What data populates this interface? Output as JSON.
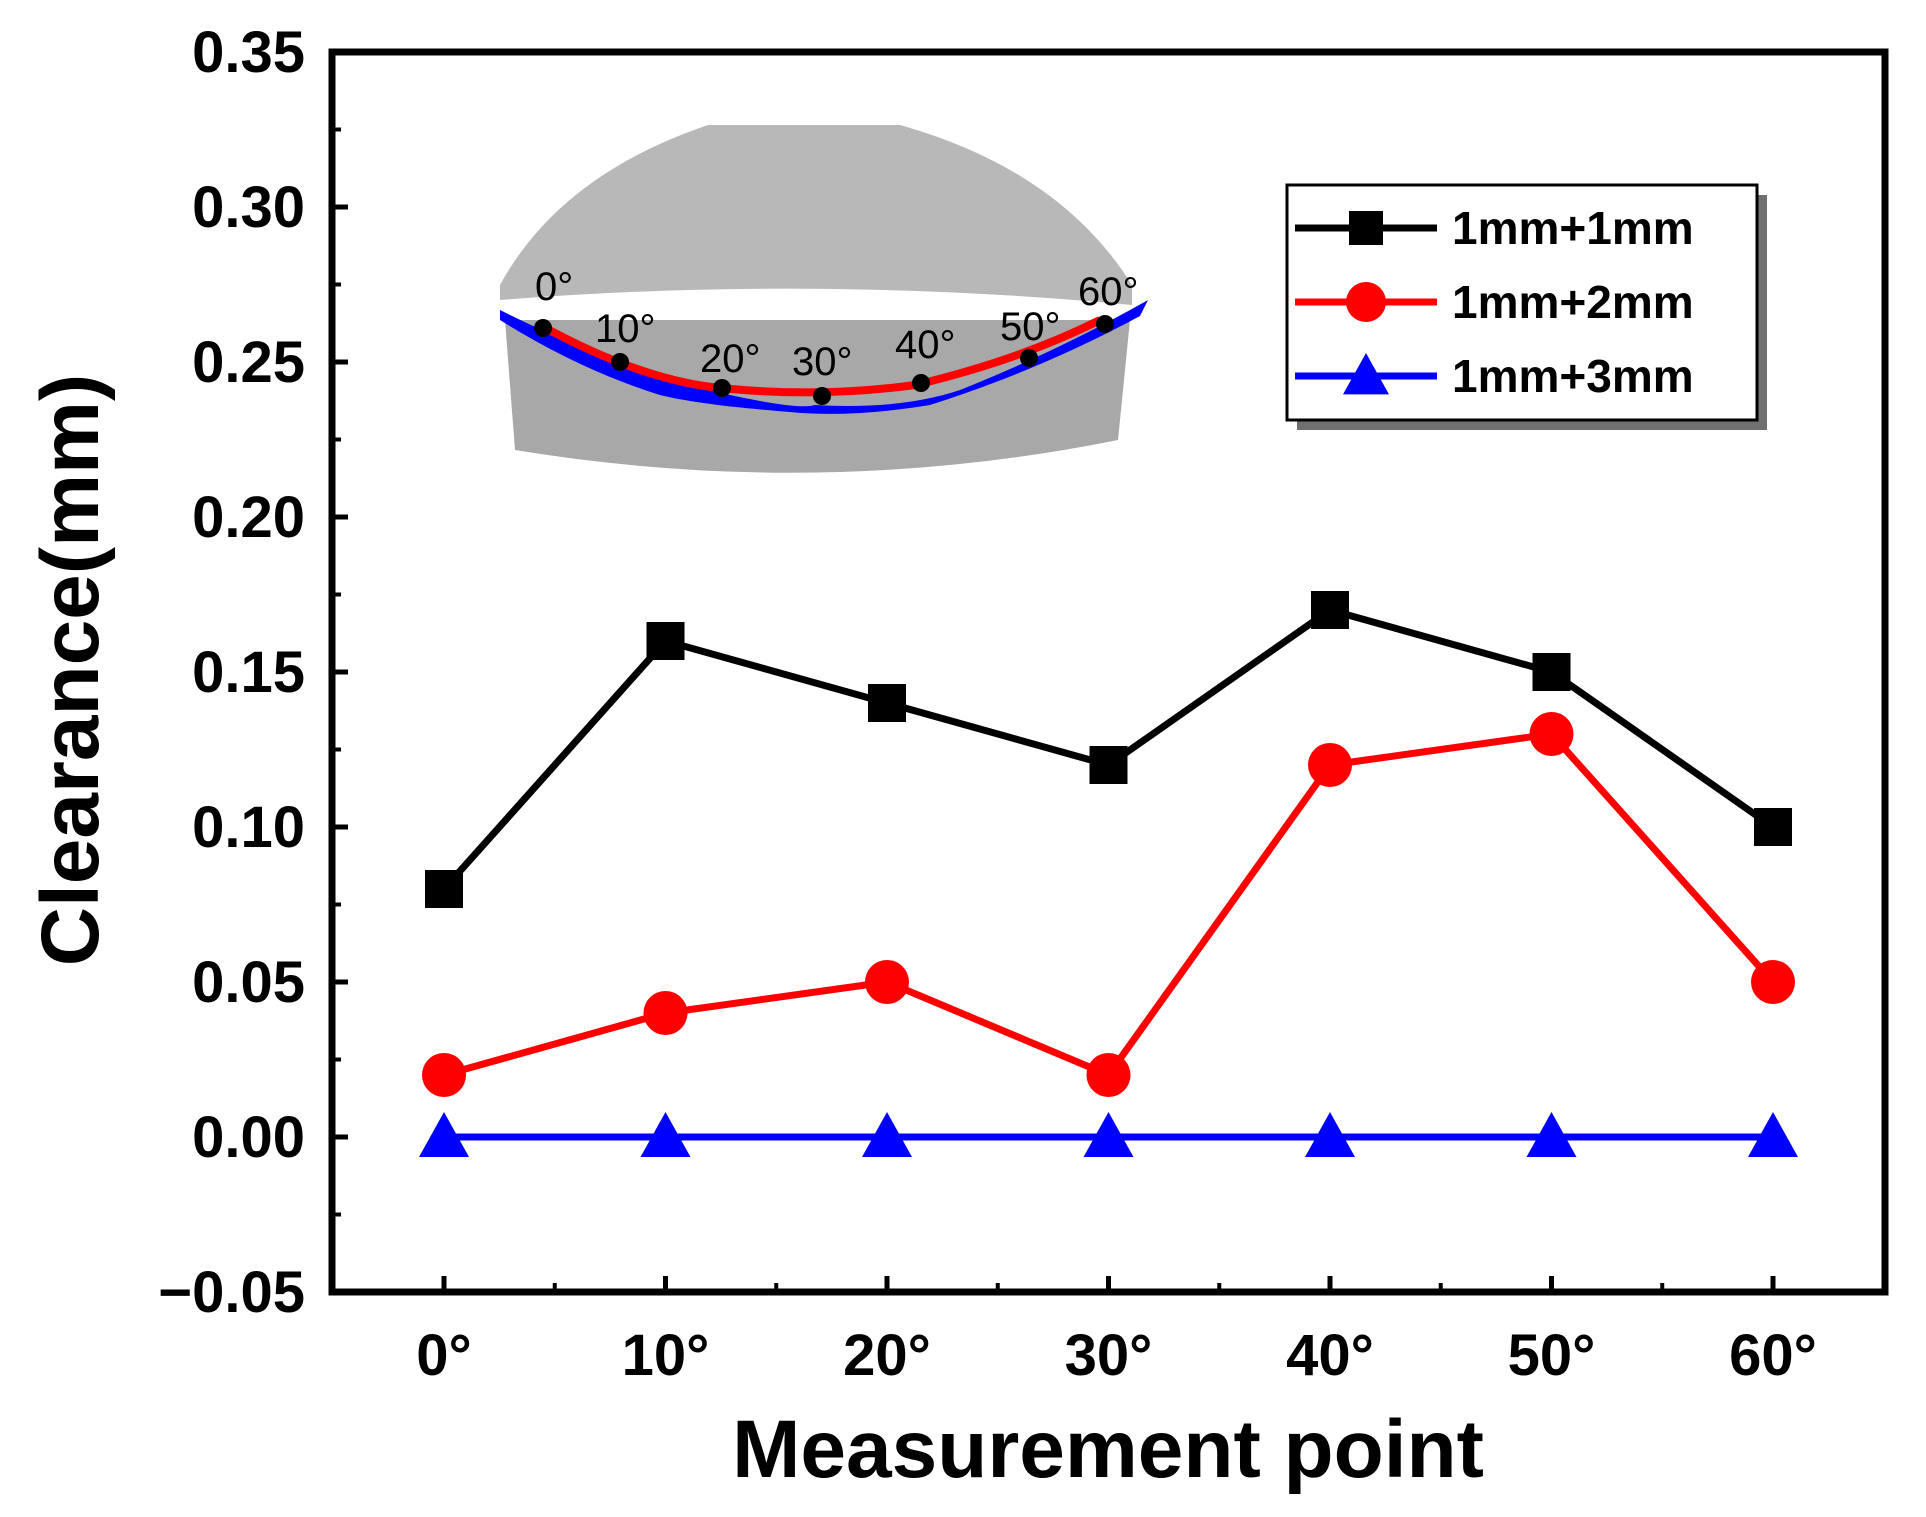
{
  "chart_data": {
    "type": "line",
    "title": "",
    "xlabel": "Measurement point",
    "ylabel": "Clearance(mm)",
    "categories": [
      "0°",
      "10°",
      "20°",
      "30°",
      "40°",
      "50°",
      "60°"
    ],
    "ylim": [
      -0.05,
      0.35
    ],
    "yticks": [
      "−0.05",
      "0.00",
      "0.05",
      "0.10",
      "0.15",
      "0.20",
      "0.25",
      "0.30",
      "0.35"
    ],
    "ytick_values": [
      -0.05,
      0.0,
      0.05,
      0.1,
      0.15,
      0.2,
      0.25,
      0.3,
      0.35
    ],
    "grid": false,
    "legend_position": "top-right",
    "series": [
      {
        "name": "1mm+1mm",
        "color": "#000000",
        "marker": "square",
        "values": [
          0.08,
          0.16,
          0.14,
          0.12,
          0.17,
          0.15,
          0.1
        ]
      },
      {
        "name": "1mm+2mm",
        "color": "#ff0000",
        "marker": "circle",
        "values": [
          0.02,
          0.04,
          0.05,
          0.02,
          0.12,
          0.13,
          0.05
        ]
      },
      {
        "name": "1mm+3mm",
        "color": "#0000ff",
        "marker": "triangle",
        "values": [
          0.0,
          0.0,
          0.0,
          0.0,
          0.0,
          0.0,
          0.0
        ]
      }
    ],
    "inset": {
      "labels": [
        "0°",
        "10°",
        "20°",
        "30°",
        "40°",
        "50°",
        "60°"
      ],
      "colors": {
        "body": "#b4b4b4",
        "curve_outer": "#0000ff",
        "curve_inner": "#ff0000"
      }
    }
  }
}
